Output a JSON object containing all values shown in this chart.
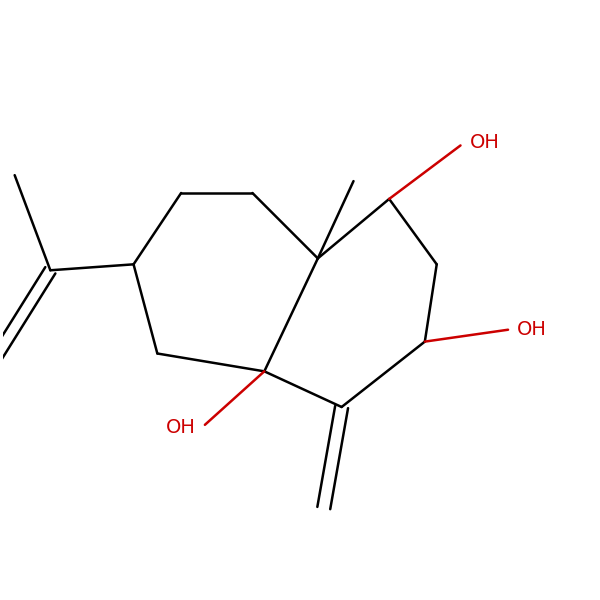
{
  "background_color": "#ffffff",
  "bond_color": "#000000",
  "oh_color": "#cc0000",
  "fig_width": 6.0,
  "fig_height": 6.0,
  "dpi": 100,
  "lw": 1.8,
  "oh_font_size": 14,
  "xlim": [
    0.0,
    1.0
  ],
  "ylim": [
    0.05,
    1.05
  ]
}
